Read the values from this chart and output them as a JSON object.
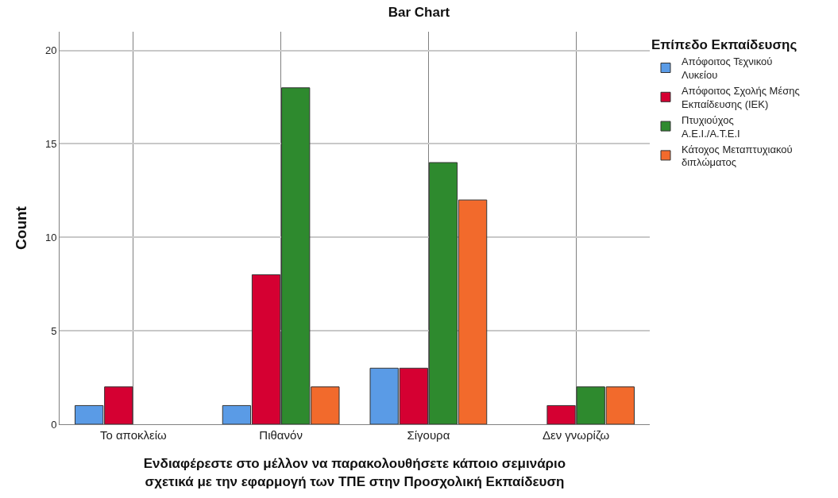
{
  "chart_data": {
    "type": "bar",
    "title": "Bar Chart",
    "xlabel": "Ενδιαφέρεστε στο μέλλον να παρακολουθήσετε κάποιο σεμινάριο σχετικά με την εφαρμογή των ΤΠΕ στην Προσχολική Εκπαίδευση",
    "ylabel": "Count",
    "legend_title": "Επίπεδο Εκπαίδευσης",
    "categories": [
      "Το αποκλείω",
      "Πιθανόν",
      "Σίγουρα",
      "Δεν γνωρίζω"
    ],
    "series": [
      {
        "name": "Απόφοιτος Τεχνικού Λυκείου",
        "color": "#5a9be6",
        "values": [
          1,
          1,
          3,
          null
        ]
      },
      {
        "name": "Απόφοιτος Σχολής Μέσης Εκπαίδευσης (ΙΕΚ)",
        "color": "#d50032",
        "values": [
          2,
          8,
          3,
          1
        ]
      },
      {
        "name": "Πτυχιούχος Α.Ε.Ι./Α.Τ.Ε.Ι",
        "color": "#2e8a2e",
        "values": [
          null,
          18,
          14,
          2
        ]
      },
      {
        "name": "Κάτοχος Μεταπτυχιακού διπλώματος",
        "color": "#f26a2c",
        "values": [
          null,
          2,
          12,
          2
        ]
      }
    ],
    "ylim": [
      0,
      21
    ],
    "yticks": [
      0,
      5,
      10,
      15,
      20
    ],
    "grid": true,
    "legend": "top right"
  }
}
